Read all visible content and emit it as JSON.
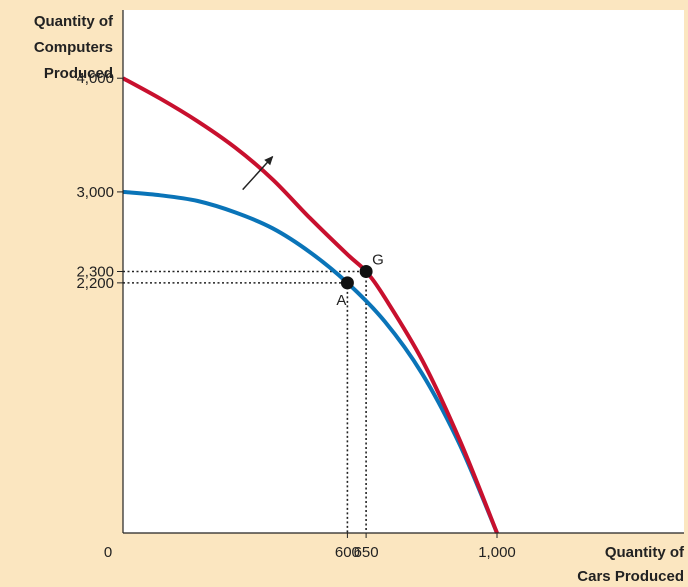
{
  "chart_data": {
    "type": "line",
    "ylabel_lines": [
      "Quantity of",
      "Computers",
      "Produced"
    ],
    "xlabel_lines": [
      "Quantity of",
      "Cars Produced"
    ],
    "origin_label": "0",
    "x_ticks": [
      {
        "value": 600,
        "label": "600"
      },
      {
        "value": 650,
        "label": "650"
      },
      {
        "value": 1000,
        "label": "1,000"
      }
    ],
    "y_ticks": [
      {
        "value": 4000,
        "label": "4,000"
      },
      {
        "value": 3000,
        "label": "3,000"
      },
      {
        "value": 2300,
        "label": "2,300"
      },
      {
        "value": 2200,
        "label": "2,200"
      }
    ],
    "xlim": [
      0,
      1500
    ],
    "ylim": [
      0,
      4600
    ],
    "series": [
      {
        "color": "#0a74b8",
        "x": [
          0,
          100,
          200,
          300,
          400,
          500,
          600,
          700,
          800,
          900,
          1000
        ],
        "y": [
          3000,
          2970,
          2920,
          2820,
          2680,
          2470,
          2200,
          1860,
          1400,
          780,
          0
        ]
      },
      {
        "color": "#c8102e",
        "x": [
          0,
          100,
          200,
          300,
          400,
          500,
          600,
          650,
          700,
          800,
          900,
          1000
        ],
        "y": [
          4000,
          3820,
          3620,
          3390,
          3110,
          2770,
          2450,
          2300,
          2070,
          1520,
          820,
          0
        ]
      }
    ],
    "points": [
      {
        "label": "A",
        "x": 600,
        "y": 2200
      },
      {
        "label": "G",
        "x": 650,
        "y": 2300
      }
    ],
    "shift_arrow": {
      "from": {
        "x": 320,
        "y": 3020
      },
      "to": {
        "x": 400,
        "y": 3310
      }
    },
    "colors": {
      "background": "#fbe6c0",
      "plot": "#ffffff",
      "axis": "#222222",
      "guide": "#222222"
    }
  }
}
